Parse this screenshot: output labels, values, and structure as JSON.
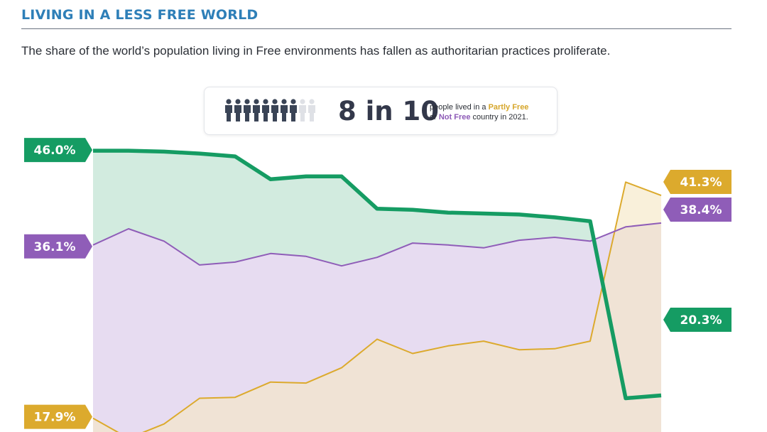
{
  "header": {
    "title": "LIVING IN A LESS FREE WORLD",
    "subtitle": "The share of the world’s population living in Free environments has fallen as authoritarian practices proliferate."
  },
  "callout": {
    "icon": "people-icon-row",
    "people_filled": 8,
    "people_total": 10,
    "big_text": "8 in 10",
    "line1_prefix": "people lived in a ",
    "line1_highlight": "Partly Free",
    "line2_prefix": "or ",
    "line2_highlight": "Not Free",
    "line2_suffix": " country in 2021."
  },
  "colors": {
    "free": "#159c63",
    "free_fill": "#d2ebdf",
    "not_free": "#8f5db8",
    "not_free_fill": "#e7dcf1",
    "partly_free": "#dcaa2d",
    "partly_free_fill": "#f6e7c3",
    "title": "#2e7fb8"
  },
  "chart_data": {
    "type": "area",
    "x": [
      0,
      1,
      2,
      3,
      4,
      5,
      6,
      7,
      8,
      9,
      10,
      11,
      12,
      13,
      14,
      15,
      16
    ],
    "ylim": [
      0,
      50
    ],
    "series": [
      {
        "values": [
          46.0,
          46.0,
          45.9,
          45.7,
          45.4,
          43.0,
          43.3,
          43.3,
          39.9,
          39.8,
          39.5,
          39.4,
          39.3,
          39.0,
          38.6,
          20.0,
          20.3
        ]
      },
      {
        "values": [
          36.1,
          37.8,
          36.5,
          34.0,
          34.3,
          35.2,
          34.9,
          33.9,
          34.8,
          36.3,
          36.1,
          35.8,
          36.6,
          36.9,
          36.5,
          38.0,
          38.4
        ]
      },
      {
        "values": [
          17.9,
          15.8,
          17.3,
          20.0,
          20.1,
          21.7,
          21.6,
          23.2,
          26.2,
          24.7,
          25.5,
          26.0,
          25.1,
          25.2,
          26.0,
          42.7,
          41.3
        ]
      }
    ],
    "start_labels": [
      "46.0%",
      "36.1%",
      "17.9%"
    ],
    "end_labels": [
      "20.3%",
      "38.4%",
      "41.3%"
    ]
  }
}
